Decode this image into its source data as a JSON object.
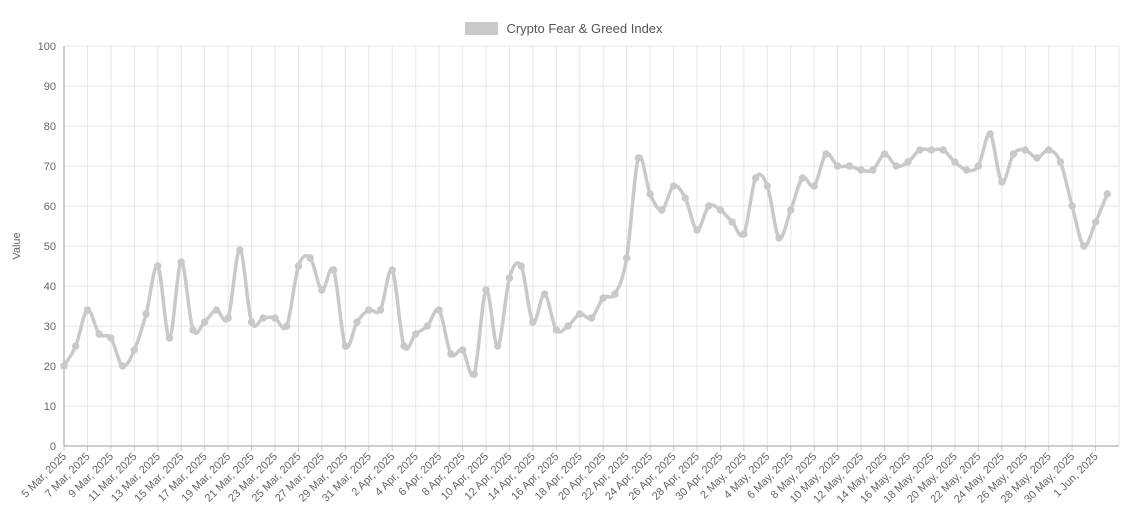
{
  "chart_data": {
    "type": "line",
    "title": "Crypto Fear & Greed Index",
    "ylabel": "Value",
    "ylim": [
      0,
      100
    ],
    "y_ticks": [
      0,
      10,
      20,
      30,
      40,
      50,
      60,
      70,
      80,
      90,
      100
    ],
    "x_tick_every_days": 2,
    "grid": true,
    "legend_position": "top-center",
    "dates": [
      "5 Mar, 2025",
      "6 Mar, 2025",
      "7 Mar, 2025",
      "8 Mar, 2025",
      "9 Mar, 2025",
      "10 Mar, 2025",
      "11 Mar, 2025",
      "12 Mar, 2025",
      "13 Mar, 2025",
      "14 Mar, 2025",
      "15 Mar, 2025",
      "16 Mar, 2025",
      "17 Mar, 2025",
      "18 Mar, 2025",
      "19 Mar, 2025",
      "20 Mar, 2025",
      "21 Mar, 2025",
      "22 Mar, 2025",
      "23 Mar, 2025",
      "24 Mar, 2025",
      "25 Mar, 2025",
      "26 Mar, 2025",
      "27 Mar, 2025",
      "28 Mar, 2025",
      "29 Mar, 2025",
      "30 Mar, 2025",
      "31 Mar, 2025",
      "1 Apr, 2025",
      "2 Apr, 2025",
      "3 Apr, 2025",
      "4 Apr, 2025",
      "5 Apr, 2025",
      "6 Apr, 2025",
      "7 Apr, 2025",
      "8 Apr, 2025",
      "9 Apr, 2025",
      "10 Apr, 2025",
      "11 Apr, 2025",
      "12 Apr, 2025",
      "13 Apr, 2025",
      "14 Apr, 2025",
      "15 Apr, 2025",
      "16 Apr, 2025",
      "17 Apr, 2025",
      "18 Apr, 2025",
      "19 Apr, 2025",
      "20 Apr, 2025",
      "21 Apr, 2025",
      "22 Apr, 2025",
      "23 Apr, 2025",
      "24 Apr, 2025",
      "25 Apr, 2025",
      "26 Apr, 2025",
      "27 Apr, 2025",
      "28 Apr, 2025",
      "29 Apr, 2025",
      "30 Apr, 2025",
      "1 May, 2025",
      "2 May, 2025",
      "3 May, 2025",
      "4 May, 2025",
      "5 May, 2025",
      "6 May, 2025",
      "7 May, 2025",
      "8 May, 2025",
      "9 May, 2025",
      "10 May, 2025",
      "11 May, 2025",
      "12 May, 2025",
      "13 May, 2025",
      "14 May, 2025",
      "15 May, 2025",
      "16 May, 2025",
      "17 May, 2025",
      "18 May, 2025",
      "19 May, 2025",
      "20 May, 2025",
      "21 May, 2025",
      "22 May, 2025",
      "23 May, 2025",
      "24 May, 2025",
      "25 May, 2025",
      "26 May, 2025",
      "27 May, 2025",
      "28 May, 2025",
      "29 May, 2025",
      "30 May, 2025",
      "31 May, 2025",
      "1 Jun, 2025",
      "2 Jun, 2025"
    ],
    "values": [
      20,
      25,
      34,
      28,
      27,
      20,
      24,
      33,
      45,
      27,
      46,
      29,
      31,
      34,
      32,
      49,
      31,
      32,
      32,
      30,
      45,
      47,
      39,
      44,
      25,
      31,
      34,
      34,
      44,
      25,
      28,
      30,
      34,
      23,
      24,
      18,
      39,
      25,
      42,
      45,
      31,
      38,
      29,
      30,
      33,
      32,
      37,
      38,
      47,
      72,
      63,
      59,
      65,
      62,
      54,
      60,
      59,
      56,
      53,
      67,
      65,
      52,
      59,
      67,
      65,
      73,
      70,
      70,
      69,
      69,
      73,
      70,
      71,
      74,
      74,
      74,
      71,
      69,
      70,
      78,
      66,
      73,
      74,
      72,
      74,
      71,
      60,
      50,
      56,
      63
    ]
  },
  "colors": {
    "line": "#c9c9c9",
    "marker": "#c9c9c9",
    "grid": "#e6e6e6",
    "axis": "#9e9e9e",
    "tick": "#cccccc",
    "text": "#666666",
    "legend_text": "#555555",
    "background": "#ffffff"
  }
}
